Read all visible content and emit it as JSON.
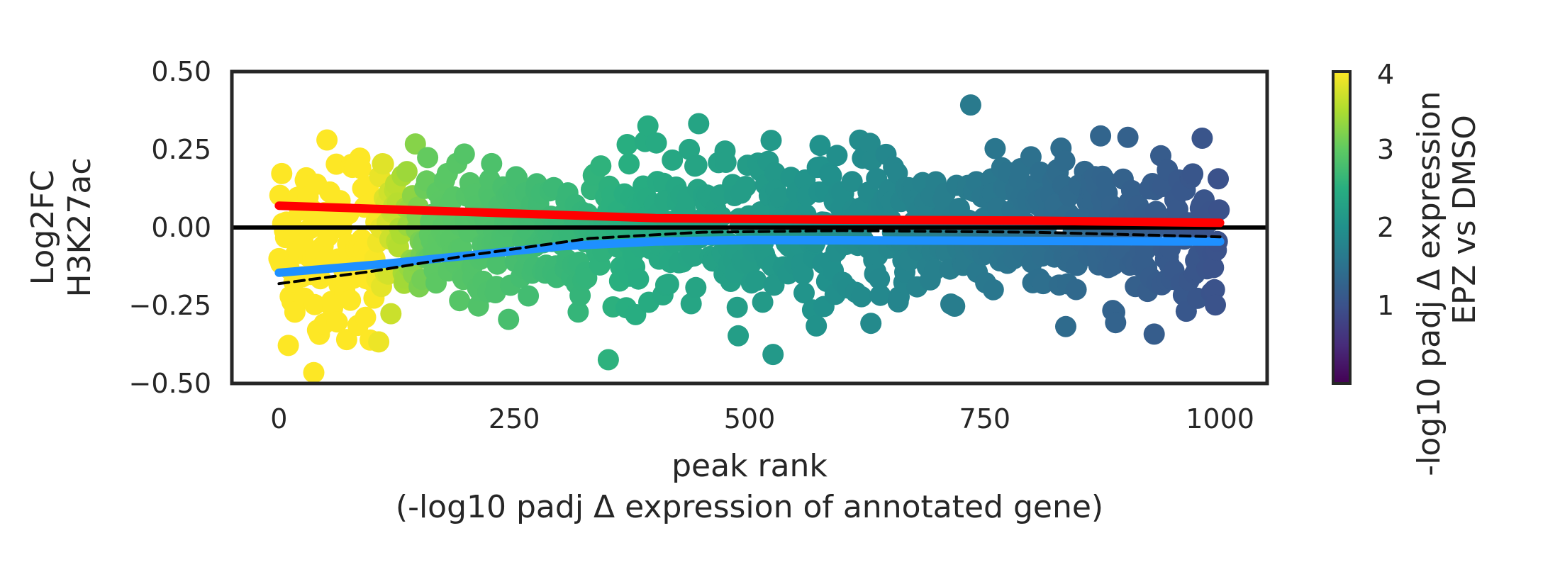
{
  "chart_data": {
    "type": "scatter",
    "xlabel_line1": "peak rank",
    "xlabel_line2": "(-log10 padj Δ expression of annotated gene)",
    "ylabel_line1": "Log2FC",
    "ylabel_line2": "H3K27ac",
    "xlim": [
      -50,
      1050
    ],
    "ylim": [
      -0.5,
      0.5
    ],
    "xticks": [
      0,
      250,
      500,
      750,
      1000
    ],
    "xtick_labels": [
      "0",
      "250",
      "500",
      "750",
      "1000"
    ],
    "yticks": [
      0.5,
      0.25,
      0.0,
      -0.25,
      -0.5
    ],
    "ytick_labels": [
      "0.50",
      "0.25",
      "0.00",
      "−0.25",
      "−0.50"
    ],
    "reference_line_y": 0.0,
    "colormap": "viridis",
    "colorbar": {
      "label_line1": "-log10 padj Δ expression",
      "label_line2": "EPZ vs DMSO",
      "range": [
        0,
        4
      ],
      "ticks": [
        4,
        3,
        2,
        1
      ],
      "tick_labels": [
        "4",
        "3",
        "2",
        "1"
      ]
    },
    "n_points": 1000,
    "trend_lines": [
      {
        "style": "solid",
        "color": "#ff0000",
        "x": [
          0,
          200,
          400,
          600,
          800,
          1000
        ],
        "y": [
          0.07,
          0.05,
          0.03,
          0.025,
          0.022,
          0.015
        ]
      },
      {
        "style": "solid",
        "color": "#1e90ff",
        "x": [
          0,
          100,
          200,
          300,
          400,
          500,
          700,
          1000
        ],
        "y": [
          -0.145,
          -0.12,
          -0.09,
          -0.06,
          -0.045,
          -0.04,
          -0.042,
          -0.045
        ]
      },
      {
        "style": "dashed",
        "color": "#000000",
        "x": [
          0,
          100,
          200,
          330,
          450,
          600,
          800,
          1000
        ],
        "y": [
          -0.18,
          -0.14,
          -0.09,
          -0.035,
          -0.015,
          -0.01,
          -0.015,
          -0.03
        ]
      }
    ]
  }
}
